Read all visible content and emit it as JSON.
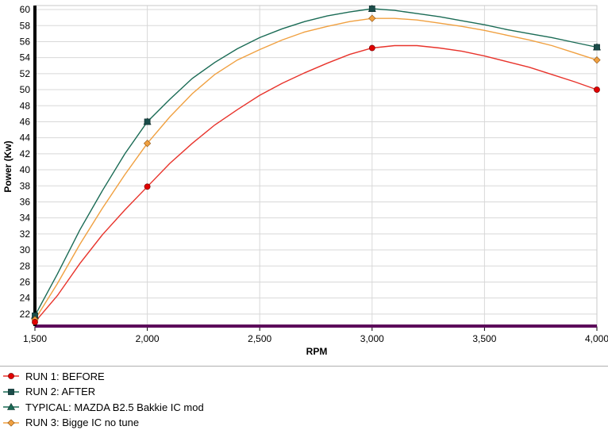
{
  "chart_data": {
    "type": "line",
    "xlabel": "RPM",
    "ylabel": "Power (Kw)",
    "xlim": [
      1500,
      4000
    ],
    "ylim": [
      20.5,
      60.5
    ],
    "x_ticks": [
      "1,500",
      "2,000",
      "2,500",
      "3,000",
      "3,500",
      "4,000"
    ],
    "x_tick_values": [
      1500,
      2000,
      2500,
      3000,
      3500,
      4000
    ],
    "y_ticks": [
      22,
      24,
      26,
      28,
      30,
      32,
      34,
      36,
      38,
      40,
      42,
      44,
      46,
      48,
      50,
      52,
      54,
      56,
      58,
      60
    ],
    "grid": true,
    "legend_position": "bottom-left",
    "series": [
      {
        "name": "RUN 1: BEFORE",
        "color": "#e8332b",
        "marker": "circle",
        "marker_color": "#e00000",
        "points": [
          [
            1500,
            21.0
          ],
          [
            2000,
            37.9
          ],
          [
            3000,
            55.2
          ],
          [
            4000,
            50.0
          ]
        ],
        "curve": [
          [
            1500,
            21.0
          ],
          [
            1600,
            24.3
          ],
          [
            1700,
            28.3
          ],
          [
            1800,
            31.9
          ],
          [
            1900,
            35.0
          ],
          [
            2000,
            37.9
          ],
          [
            2100,
            40.8
          ],
          [
            2200,
            43.3
          ],
          [
            2300,
            45.6
          ],
          [
            2400,
            47.5
          ],
          [
            2500,
            49.3
          ],
          [
            2600,
            50.8
          ],
          [
            2700,
            52.1
          ],
          [
            2800,
            53.3
          ],
          [
            2900,
            54.4
          ],
          [
            3000,
            55.2
          ],
          [
            3100,
            55.5
          ],
          [
            3200,
            55.5
          ],
          [
            3300,
            55.2
          ],
          [
            3400,
            54.8
          ],
          [
            3500,
            54.2
          ],
          [
            3600,
            53.5
          ],
          [
            3700,
            52.8
          ],
          [
            3800,
            51.9
          ],
          [
            3900,
            51.0
          ],
          [
            4000,
            50.0
          ]
        ]
      },
      {
        "name": "RUN 2: AFTER",
        "color": "#1a6b55",
        "marker": "square",
        "marker_color": "#1b4d4a",
        "points": [
          [
            1500,
            21.8
          ],
          [
            2000,
            46.0
          ],
          [
            3000,
            60.1
          ],
          [
            4000,
            55.3
          ]
        ],
        "curve": []
      },
      {
        "name": "TYPICAL: MAZDA B2.5 Bakkie IC mod",
        "color": "#1a6b55",
        "marker": "triangle",
        "marker_color": "#1a6b55",
        "points": [
          [
            1500,
            21.8
          ],
          [
            2000,
            46.0
          ],
          [
            3000,
            60.1
          ],
          [
            4000,
            55.3
          ]
        ],
        "curve": [
          [
            1500,
            21.8
          ],
          [
            1600,
            27.0
          ],
          [
            1700,
            32.5
          ],
          [
            1800,
            37.4
          ],
          [
            1900,
            42.0
          ],
          [
            2000,
            46.0
          ],
          [
            2100,
            48.8
          ],
          [
            2200,
            51.4
          ],
          [
            2300,
            53.4
          ],
          [
            2400,
            55.1
          ],
          [
            2500,
            56.5
          ],
          [
            2600,
            57.6
          ],
          [
            2700,
            58.5
          ],
          [
            2800,
            59.2
          ],
          [
            2900,
            59.7
          ],
          [
            3000,
            60.1
          ],
          [
            3100,
            59.9
          ],
          [
            3200,
            59.5
          ],
          [
            3300,
            59.1
          ],
          [
            3400,
            58.6
          ],
          [
            3500,
            58.1
          ],
          [
            3600,
            57.5
          ],
          [
            3700,
            57.0
          ],
          [
            3800,
            56.5
          ],
          [
            3900,
            55.9
          ],
          [
            4000,
            55.3
          ]
        ]
      },
      {
        "name": "RUN 3: Bigge IC no tune",
        "color": "#f0a040",
        "marker": "diamond",
        "marker_color": "#f0a040",
        "points": [
          [
            1500,
            21.3
          ],
          [
            2000,
            43.3
          ],
          [
            3000,
            58.9
          ],
          [
            4000,
            53.7
          ]
        ],
        "curve": [
          [
            1500,
            21.3
          ],
          [
            1600,
            25.8
          ],
          [
            1700,
            30.7
          ],
          [
            1800,
            35.2
          ],
          [
            1900,
            39.4
          ],
          [
            2000,
            43.3
          ],
          [
            2100,
            46.6
          ],
          [
            2200,
            49.5
          ],
          [
            2300,
            51.9
          ],
          [
            2400,
            53.7
          ],
          [
            2500,
            55.0
          ],
          [
            2600,
            56.2
          ],
          [
            2700,
            57.2
          ],
          [
            2800,
            57.9
          ],
          [
            2900,
            58.5
          ],
          [
            3000,
            58.9
          ],
          [
            3100,
            58.9
          ],
          [
            3200,
            58.7
          ],
          [
            3300,
            58.3
          ],
          [
            3400,
            57.9
          ],
          [
            3500,
            57.4
          ],
          [
            3600,
            56.8
          ],
          [
            3700,
            56.2
          ],
          [
            3800,
            55.5
          ],
          [
            3900,
            54.6
          ],
          [
            4000,
            53.7
          ]
        ]
      }
    ]
  }
}
